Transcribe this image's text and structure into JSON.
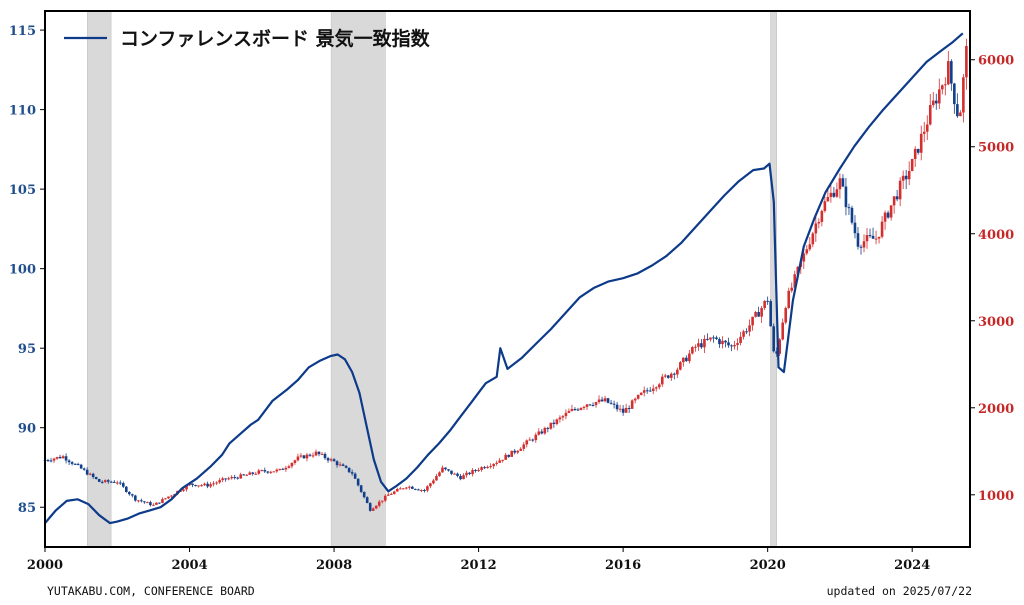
{
  "footer": {
    "source": "YUTAKABU.COM, CONFERENCE BOARD",
    "updated": "updated on 2025/07/22"
  },
  "colors": {
    "lei_line": "#0d3b8a",
    "candle_up": "#d32f2f",
    "candle_down": "#123f8a",
    "recession": "#d9d9d9",
    "left_axis": "#1f4e8c",
    "right_axis": "#c62828"
  },
  "chart_data": {
    "type": "line",
    "legend": {
      "label": "コンファレンスボード 景気一致指数",
      "placement": "top-left"
    },
    "x_ticks": [
      2000,
      2004,
      2008,
      2012,
      2016,
      2020,
      2024
    ],
    "xlim": [
      2000,
      2025.6
    ],
    "left_axis": {
      "ylim": [
        82.5,
        116.2
      ],
      "ticks": [
        85,
        90,
        95,
        100,
        105,
        110,
        115
      ]
    },
    "right_axis": {
      "ylim": [
        400,
        6560
      ],
      "ticks": [
        1000,
        2000,
        3000,
        4000,
        5000,
        6000
      ]
    },
    "recessions": [
      [
        2001.17,
        2001.83
      ],
      [
        2007.92,
        2009.42
      ],
      [
        2020.08,
        2020.25
      ]
    ],
    "series": [
      {
        "name": "コンファレンスボード 景気一致指数",
        "axis": "left",
        "style": "line",
        "x": [
          2000.0,
          2000.3,
          2000.6,
          2000.9,
          2001.2,
          2001.5,
          2001.8,
          2002.0,
          2002.3,
          2002.6,
          2002.9,
          2003.2,
          2003.5,
          2003.8,
          2004.2,
          2004.6,
          2004.9,
          2005.1,
          2005.4,
          2005.7,
          2005.9,
          2006.3,
          2006.7,
          2007.0,
          2007.3,
          2007.6,
          2007.9,
          2008.1,
          2008.3,
          2008.5,
          2008.7,
          2008.9,
          2009.1,
          2009.3,
          2009.5,
          2009.7,
          2010.0,
          2010.3,
          2010.6,
          2010.9,
          2011.2,
          2011.5,
          2011.8,
          2012.0,
          2012.2,
          2012.5,
          2012.6,
          2012.8,
          2013.2,
          2013.6,
          2014.0,
          2014.4,
          2014.8,
          2015.2,
          2015.6,
          2016.0,
          2016.4,
          2016.8,
          2017.2,
          2017.6,
          2018.0,
          2018.4,
          2018.8,
          2019.2,
          2019.6,
          2019.9,
          2020.05,
          2020.17,
          2020.3,
          2020.45,
          2020.7,
          2021.0,
          2021.3,
          2021.6,
          2022.0,
          2022.4,
          2022.8,
          2023.2,
          2023.6,
          2024.0,
          2024.4,
          2024.8,
          2025.1,
          2025.4
        ],
        "values": [
          84.0,
          84.8,
          85.4,
          85.5,
          85.2,
          84.5,
          84.0,
          84.1,
          84.3,
          84.6,
          84.8,
          85.0,
          85.5,
          86.2,
          86.8,
          87.6,
          88.3,
          89.0,
          89.6,
          90.2,
          90.5,
          91.7,
          92.4,
          93.0,
          93.8,
          94.2,
          94.5,
          94.6,
          94.3,
          93.5,
          92.2,
          90.1,
          88.0,
          86.6,
          86.0,
          86.3,
          86.8,
          87.5,
          88.3,
          89.0,
          89.8,
          90.7,
          91.6,
          92.2,
          92.8,
          93.2,
          95.0,
          93.7,
          94.4,
          95.3,
          96.2,
          97.2,
          98.2,
          98.8,
          99.2,
          99.4,
          99.7,
          100.2,
          100.8,
          101.6,
          102.6,
          103.6,
          104.6,
          105.5,
          106.2,
          106.3,
          106.6,
          104.2,
          93.8,
          93.5,
          98.0,
          101.4,
          103.2,
          104.8,
          106.3,
          107.7,
          108.9,
          110.0,
          111.0,
          112.0,
          113.0,
          113.7,
          114.2,
          114.8
        ]
      },
      {
        "name": "",
        "axis": "right",
        "style": "candlestick",
        "x": [
          2000.0,
          2000.5,
          2001.0,
          2001.5,
          2002.0,
          2002.5,
          2003.0,
          2003.5,
          2004.0,
          2004.5,
          2005.0,
          2005.5,
          2006.0,
          2006.5,
          2007.0,
          2007.5,
          2008.0,
          2008.5,
          2009.0,
          2009.5,
          2010.0,
          2010.5,
          2011.0,
          2011.5,
          2012.0,
          2012.5,
          2013.0,
          2013.5,
          2014.0,
          2014.5,
          2015.0,
          2015.5,
          2016.0,
          2016.5,
          2017.0,
          2017.5,
          2018.0,
          2018.5,
          2019.0,
          2019.5,
          2020.0,
          2020.2,
          2020.5,
          2021.0,
          2021.5,
          2022.0,
          2022.5,
          2023.0,
          2023.5,
          2024.0,
          2024.5,
          2025.0,
          2025.3,
          2025.55
        ],
        "values": [
          1400,
          1440,
          1300,
          1150,
          1150,
          950,
          880,
          1000,
          1120,
          1110,
          1180,
          1220,
          1270,
          1280,
          1420,
          1480,
          1380,
          1250,
          830,
          1000,
          1100,
          1050,
          1300,
          1200,
          1300,
          1380,
          1500,
          1650,
          1800,
          1950,
          2050,
          2080,
          1950,
          2150,
          2300,
          2450,
          2700,
          2800,
          2700,
          2950,
          3250,
          2500,
          3200,
          3750,
          4300,
          4600,
          3900,
          3950,
          4400,
          4800,
          5400,
          5900,
          5300,
          6290
        ]
      }
    ]
  }
}
